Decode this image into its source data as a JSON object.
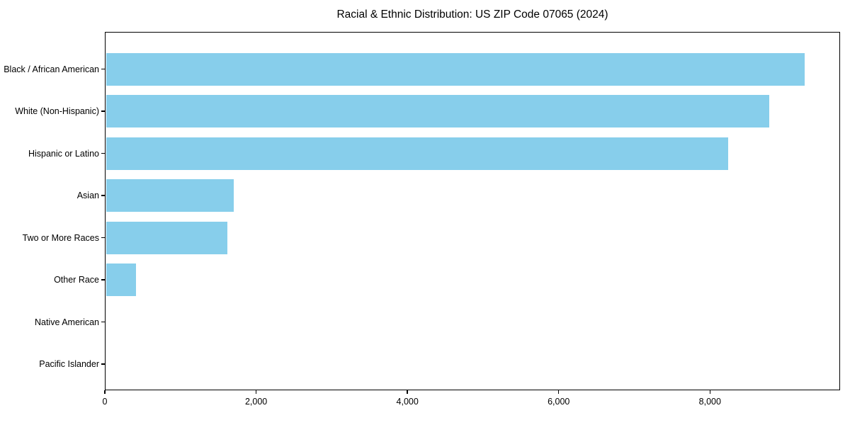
{
  "colors": {
    "background": "#ffffff",
    "axis": "#000000",
    "text": "#000000",
    "bar": "#87CEEB"
  },
  "chart_data": {
    "type": "bar",
    "orientation": "horizontal",
    "title": "Racial & Ethnic Distribution: US ZIP Code 07065 (2024)",
    "categories": [
      "Black / African American",
      "White (Non-Hispanic)",
      "Hispanic or Latino",
      "Asian",
      "Two or More Races",
      "Other Race",
      "Native American",
      "Pacific Islander"
    ],
    "values": [
      9250,
      8780,
      8240,
      1705,
      1620,
      410,
      0,
      0
    ],
    "xlabel": "",
    "ylabel": "",
    "xlim": [
      0,
      9720
    ],
    "x_ticks": [
      {
        "value": 0,
        "label": "0"
      },
      {
        "value": 2000,
        "label": "2,000"
      },
      {
        "value": 4000,
        "label": "4,000"
      },
      {
        "value": 6000,
        "label": "6,000"
      },
      {
        "value": 8000,
        "label": "8,000"
      }
    ],
    "bar_color": "#87CEEB",
    "grid": false,
    "legend": null
  }
}
